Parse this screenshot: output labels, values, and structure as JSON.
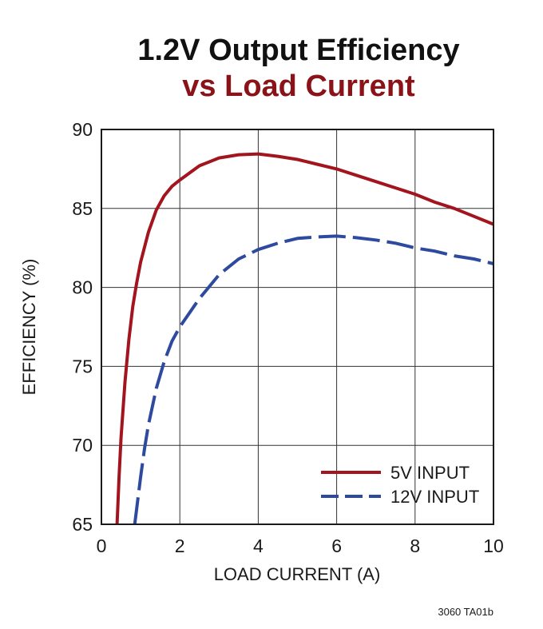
{
  "chart_data": {
    "type": "line",
    "title_line1": "1.2V Output Efficiency",
    "title_line2": "vs Load Current",
    "xlabel": "LOAD CURRENT (A)",
    "ylabel": "EFFICIENCY (%)",
    "xlim": [
      0,
      10
    ],
    "ylim": [
      65,
      90
    ],
    "xticks": [
      "0",
      "2",
      "4",
      "6",
      "8",
      "10"
    ],
    "yticks": [
      "65",
      "70",
      "75",
      "80",
      "85",
      "90"
    ],
    "grid": true,
    "legend_position": "bottom-right",
    "series": [
      {
        "name": "5V INPUT",
        "color": "#a3151e",
        "dash": "solid",
        "x": [
          0.4,
          0.45,
          0.5,
          0.6,
          0.7,
          0.8,
          0.9,
          1.0,
          1.2,
          1.4,
          1.6,
          1.8,
          2.0,
          2.5,
          3.0,
          3.5,
          4.0,
          4.5,
          5.0,
          5.5,
          6.0,
          6.5,
          7.0,
          7.5,
          8.0,
          8.5,
          9.0,
          9.5,
          10.0
        ],
        "y": [
          65.0,
          68.0,
          70.5,
          74.0,
          76.7,
          78.8,
          80.3,
          81.6,
          83.5,
          84.9,
          85.8,
          86.4,
          86.8,
          87.7,
          88.2,
          88.4,
          88.45,
          88.3,
          88.1,
          87.8,
          87.5,
          87.1,
          86.7,
          86.3,
          85.9,
          85.4,
          85.0,
          84.5,
          84.0
        ]
      },
      {
        "name": "12V INPUT",
        "color": "#2e4a9e",
        "dash": "dashed",
        "x": [
          0.85,
          0.9,
          1.0,
          1.1,
          1.2,
          1.4,
          1.6,
          1.8,
          2.0,
          2.5,
          3.0,
          3.5,
          4.0,
          4.5,
          5.0,
          5.5,
          6.0,
          6.5,
          7.0,
          7.5,
          8.0,
          8.5,
          9.0,
          9.5,
          10.0
        ],
        "y": [
          65.0,
          66.0,
          68.0,
          69.8,
          71.3,
          73.6,
          75.3,
          76.6,
          77.5,
          79.3,
          80.8,
          81.8,
          82.4,
          82.8,
          83.1,
          83.2,
          83.25,
          83.15,
          83.0,
          82.8,
          82.5,
          82.3,
          82.0,
          81.8,
          81.5
        ]
      }
    ]
  },
  "figure_ref": "3060 TA01b"
}
